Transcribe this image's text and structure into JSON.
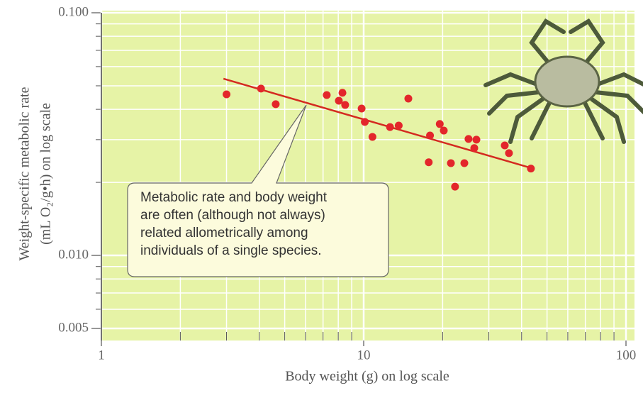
{
  "chart_data": {
    "type": "scatter",
    "x_label": "Body weight (g) on log scale",
    "y_label": [
      "Weight-specific metabolic rate",
      "(mL O₂/g•h) on log scale"
    ],
    "x": [
      3.0,
      4.06,
      4.62,
      7.23,
      8.04,
      8.3,
      8.5,
      9.82,
      10.1,
      10.8,
      12.6,
      13.6,
      14.8,
      17.7,
      17.9,
      19.5,
      20.2,
      21.5,
      22.3,
      24.2,
      25.1,
      26.4,
      26.9,
      34.5,
      35.8,
      43.4
    ],
    "values": [
      0.0461,
      0.0487,
      0.042,
      0.0458,
      0.0434,
      0.0468,
      0.0417,
      0.0403,
      0.0355,
      0.0308,
      0.0338,
      0.0343,
      0.0443,
      0.0242,
      0.0312,
      0.0348,
      0.0327,
      0.024,
      0.0192,
      0.024,
      0.0302,
      0.0277,
      0.03,
      0.0284,
      0.0264,
      0.0228
    ],
    "color": "#e3262b",
    "fit_line": {
      "x": [
        2.92,
        43.6
      ],
      "values": [
        0.0535,
        0.0229
      ],
      "color": "#d42a20"
    },
    "annotation": [
      "Metabolic rate and body weight",
      "are often (although not always)",
      "related allometrically among",
      "individuals of a single species."
    ],
    "xlim": [
      1,
      100
    ],
    "ylim": [
      0.00446,
      0.1
    ],
    "xticks": [
      1,
      10,
      100
    ],
    "yticks": [
      {
        "value": 0.1,
        "label": "0.100"
      },
      {
        "value": 0.01,
        "label": "0.010"
      },
      0.005
    ],
    "xscale": "log",
    "yscale": "log",
    "grid": true,
    "background": "#e6f3a6"
  }
}
